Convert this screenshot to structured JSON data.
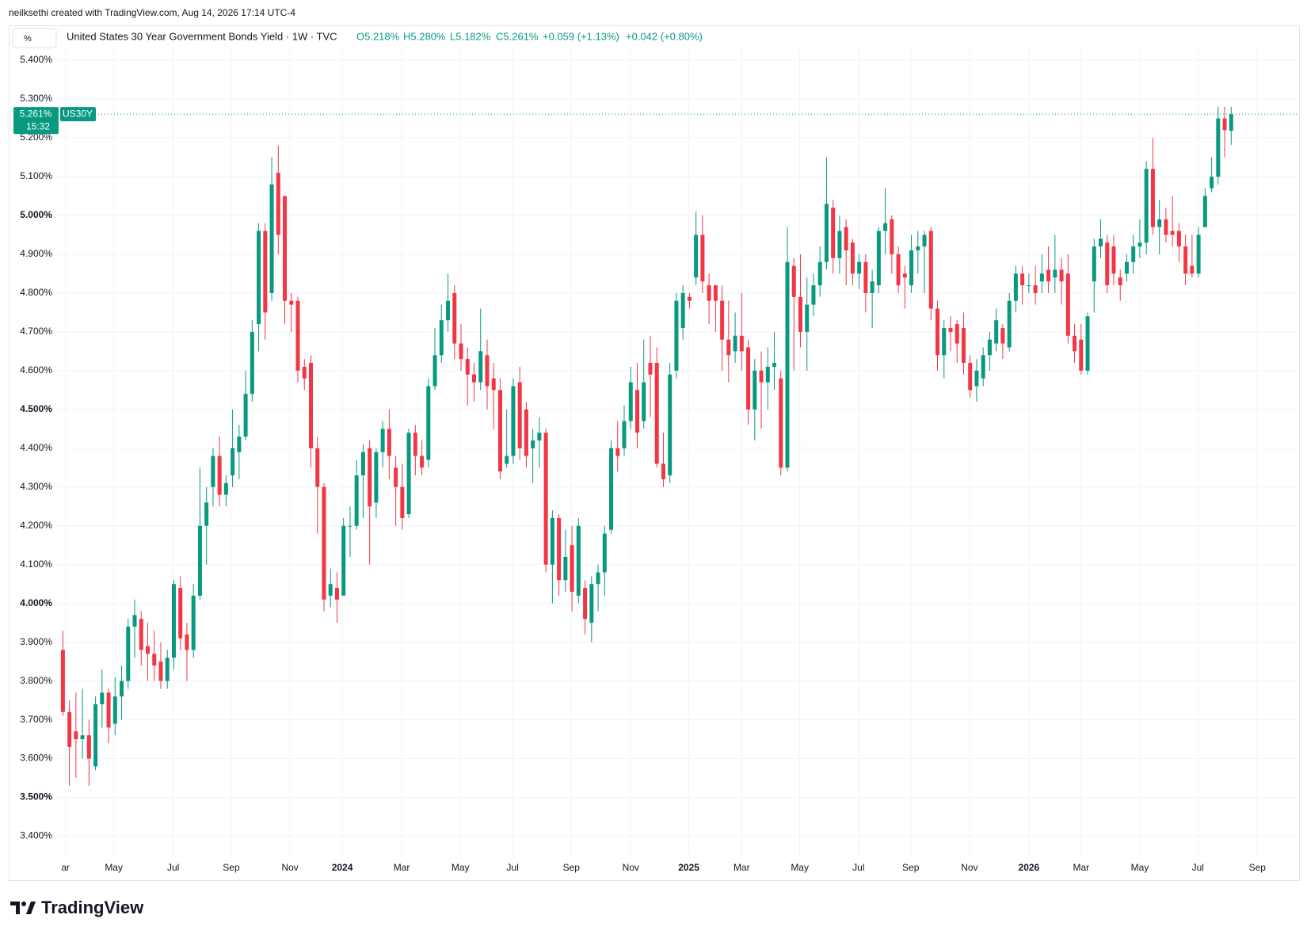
{
  "chart_data": {
    "type": "candlestick",
    "watermark": "neilksethi created with TradingView.com, Aug 14, 2026 17:14 UTC-4",
    "unit": "%",
    "title": "United States 30 Year Government Bonds Yield · 1W · TVC",
    "ohlc_labels": [
      "O5.218%",
      "H5.280%",
      "L5.182%",
      "C5.261%"
    ],
    "change_labels": [
      "+0.059 (+1.13%)",
      "+0.042 (+0.80%)"
    ],
    "symbol": "US30Y",
    "last_label": "5.261%",
    "countdown": "15:32",
    "brand": "TradingView",
    "up_color": "#089981",
    "down_color": "#f23645",
    "grid": true,
    "ylim": [
      3.35,
      5.49
    ],
    "yticks": [
      {
        "value": 3.4,
        "label": "3.400%"
      },
      {
        "value": 3.5,
        "label": "3.500%"
      },
      {
        "value": 3.6,
        "label": "3.600%"
      },
      {
        "value": 3.7,
        "label": "3.700%"
      },
      {
        "value": 3.8,
        "label": "3.800%"
      },
      {
        "value": 3.9,
        "label": "3.900%"
      },
      {
        "value": 4.0,
        "label": "4.000%"
      },
      {
        "value": 4.1,
        "label": "4.100%"
      },
      {
        "value": 4.2,
        "label": "4.200%"
      },
      {
        "value": 4.3,
        "label": "4.300%"
      },
      {
        "value": 4.4,
        "label": "4.400%"
      },
      {
        "value": 4.5,
        "label": "4.500%"
      },
      {
        "value": 4.6,
        "label": "4.600%"
      },
      {
        "value": 4.7,
        "label": "4.700%"
      },
      {
        "value": 4.8,
        "label": "4.800%"
      },
      {
        "value": 4.9,
        "label": "4.900%"
      },
      {
        "value": 5.0,
        "label": "5.000%"
      },
      {
        "value": 5.1,
        "label": "5.100%"
      },
      {
        "value": 5.2,
        "label": "5.200%"
      },
      {
        "value": 5.3,
        "label": "5.300%"
      },
      {
        "value": 5.4,
        "label": "5.400%"
      }
    ],
    "xlim": [
      -8.3,
      189.4
    ],
    "xticks": [
      {
        "value": 0.4,
        "label": "ar"
      },
      {
        "value": 7.8,
        "label": "May"
      },
      {
        "value": 16.9,
        "label": "Jul"
      },
      {
        "value": 25.8,
        "label": "Sep"
      },
      {
        "value": 34.8,
        "label": "Nov"
      },
      {
        "value": 42.8,
        "label": "2024"
      },
      {
        "value": 51.9,
        "label": "Mar"
      },
      {
        "value": 60.9,
        "label": "May"
      },
      {
        "value": 68.9,
        "label": "Jul"
      },
      {
        "value": 77.9,
        "label": "Sep"
      },
      {
        "value": 87,
        "label": "Nov"
      },
      {
        "value": 95.9,
        "label": "2025"
      },
      {
        "value": 104,
        "label": "Mar"
      },
      {
        "value": 112.9,
        "label": "May"
      },
      {
        "value": 121.9,
        "label": "Jul"
      },
      {
        "value": 129.9,
        "label": "Sep"
      },
      {
        "value": 138.9,
        "label": "Nov"
      },
      {
        "value": 148,
        "label": "2026"
      },
      {
        "value": 156,
        "label": "Mar"
      },
      {
        "value": 165,
        "label": "May"
      },
      {
        "value": 173.9,
        "label": "Jul"
      },
      {
        "value": 183,
        "label": "Sep"
      }
    ],
    "open": [
      3.88,
      3.72,
      3.67,
      3.65,
      3.66,
      3.58,
      3.74,
      3.77,
      3.69,
      3.76,
      3.8,
      3.94,
      3.96,
      3.89,
      3.87,
      3.85,
      3.8,
      3.86,
      4.04,
      3.92,
      3.88,
      4.02,
      4.2,
      4.3,
      4.38,
      4.28,
      4.33,
      4.39,
      4.43,
      4.54,
      4.72,
      4.96,
      4.8,
      5.11,
      5.05,
      4.78,
      4.78,
      4.61,
      4.62,
      4.4,
      4.3,
      4.02,
      4.04,
      4.02,
      4.2,
      4.2,
      4.33,
      4.4,
      4.26,
      4.39,
      4.45,
      4.35,
      4.3,
      4.23,
      4.44,
      4.38,
      4.37,
      4.56,
      4.64,
      4.73,
      4.8,
      4.67,
      4.63,
      4.59,
      4.57,
      4.64,
      4.58,
      4.55,
      4.36,
      4.38,
      4.57,
      4.5,
      4.4,
      4.42,
      4.44,
      4.1,
      4.22,
      4.06,
      4.15,
      4.02,
      4.04,
      3.95,
      4.05,
      4.08,
      4.19,
      4.4,
      4.4,
      4.47,
      4.55,
      4.47,
      4.62,
      4.62,
      4.36,
      4.33,
      4.6,
      4.71,
      4.79,
      4.84,
      4.95,
      4.82,
      4.82,
      4.78,
      4.68,
      4.65,
      4.69,
      4.66,
      4.5,
      4.6,
      4.57,
      4.61,
      4.58,
      4.35,
      4.87,
      4.79,
      4.7,
      4.77,
      4.82,
      4.88,
      5.02,
      4.89,
      4.97,
      4.93,
      4.85,
      4.88,
      4.8,
      4.82,
      4.96,
      4.99,
      4.9,
      4.85,
      4.82,
      4.91,
      4.92,
      4.96,
      4.76,
      4.64,
      4.71,
      4.72,
      4.71,
      4.62,
      4.56,
      4.58,
      4.64,
      4.67,
      4.71,
      4.66,
      4.78,
      4.85,
      4.82,
      4.82,
      4.83,
      4.86,
      4.84,
      4.86,
      4.85,
      4.69,
      4.68,
      4.6,
      4.83,
      4.92,
      4.93,
      4.92,
      4.84,
      4.85,
      4.88,
      4.92,
      4.93,
      5.12,
      4.97,
      4.99,
      4.96,
      4.96,
      4.92,
      4.87,
      4.85,
      4.97,
      5.07,
      5.1,
      5.25,
      5.218
    ],
    "high": [
      3.93,
      3.75,
      3.77,
      3.78,
      3.7,
      3.76,
      3.83,
      3.78,
      3.81,
      3.84,
      3.96,
      4.01,
      3.98,
      3.95,
      3.93,
      3.9,
      3.88,
      4.06,
      4.07,
      3.95,
      4.05,
      4.35,
      4.3,
      4.4,
      4.43,
      4.33,
      4.5,
      4.46,
      4.6,
      4.73,
      4.98,
      4.98,
      5.15,
      5.18,
      5.05,
      4.8,
      4.79,
      4.63,
      4.64,
      4.43,
      4.31,
      4.09,
      4.08,
      4.22,
      4.25,
      4.37,
      4.41,
      4.42,
      4.4,
      4.47,
      4.5,
      4.38,
      4.36,
      4.45,
      4.46,
      4.42,
      4.58,
      4.71,
      4.77,
      4.85,
      4.82,
      4.72,
      4.66,
      4.62,
      4.76,
      4.68,
      4.62,
      4.58,
      4.5,
      4.58,
      4.61,
      4.52,
      4.45,
      4.48,
      4.45,
      4.24,
      4.23,
      4.19,
      4.2,
      4.22,
      4.06,
      4.07,
      4.1,
      4.2,
      4.42,
      4.47,
      4.51,
      4.61,
      4.62,
      4.68,
      4.69,
      4.66,
      4.44,
      4.62,
      4.8,
      4.82,
      4.8,
      5.01,
      5.0,
      4.85,
      4.82,
      4.82,
      4.78,
      4.75,
      4.8,
      4.68,
      4.63,
      4.65,
      4.66,
      4.7,
      4.6,
      4.97,
      4.89,
      4.9,
      4.84,
      4.85,
      4.92,
      5.15,
      5.04,
      5.0,
      4.99,
      4.94,
      4.9,
      4.9,
      4.86,
      4.97,
      5.07,
      5.0,
      4.92,
      4.87,
      4.95,
      4.96,
      4.96,
      4.97,
      4.78,
      4.73,
      4.74,
      4.73,
      4.75,
      4.64,
      4.63,
      4.66,
      4.7,
      4.76,
      4.72,
      4.8,
      4.87,
      4.87,
      4.85,
      4.87,
      4.9,
      4.92,
      4.95,
      4.89,
      4.9,
      4.72,
      4.72,
      4.75,
      4.94,
      4.99,
      4.95,
      4.95,
      4.86,
      4.9,
      4.95,
      4.99,
      5.14,
      5.2,
      5.04,
      5.02,
      5.05,
      4.98,
      4.95,
      4.95,
      4.97,
      5.07,
      5.15,
      5.28,
      5.28,
      5.28
    ],
    "low": [
      3.71,
      3.53,
      3.55,
      3.6,
      3.53,
      3.57,
      3.68,
      3.64,
      3.66,
      3.7,
      3.78,
      3.86,
      3.84,
      3.8,
      3.8,
      3.78,
      3.78,
      3.83,
      3.88,
      3.8,
      3.86,
      4.01,
      4.1,
      4.25,
      4.25,
      4.25,
      4.3,
      4.32,
      4.42,
      4.52,
      4.65,
      4.68,
      4.78,
      4.9,
      4.72,
      4.7,
      4.57,
      4.55,
      4.35,
      4.18,
      3.98,
      3.99,
      3.95,
      4.02,
      4.12,
      4.19,
      4.22,
      4.1,
      4.22,
      4.35,
      4.32,
      4.2,
      4.19,
      4.22,
      4.33,
      4.33,
      4.35,
      4.55,
      4.62,
      4.7,
      4.63,
      4.6,
      4.51,
      4.52,
      4.55,
      4.5,
      4.45,
      4.32,
      4.35,
      4.36,
      4.37,
      4.35,
      4.31,
      4.35,
      4.08,
      4.0,
      4.02,
      4.03,
      3.98,
      4.0,
      3.92,
      3.9,
      3.98,
      4.02,
      4.18,
      4.34,
      4.38,
      4.45,
      4.4,
      4.45,
      4.48,
      4.35,
      4.3,
      4.31,
      4.58,
      4.68,
      4.76,
      4.82,
      4.8,
      4.72,
      4.7,
      4.6,
      4.57,
      4.62,
      4.6,
      4.46,
      4.42,
      4.45,
      4.5,
      4.55,
      4.33,
      4.34,
      4.6,
      4.66,
      4.6,
      4.74,
      4.79,
      4.86,
      4.85,
      4.85,
      4.82,
      4.82,
      4.81,
      4.75,
      4.71,
      4.8,
      4.9,
      4.85,
      4.8,
      4.76,
      4.8,
      4.85,
      4.8,
      4.73,
      4.6,
      4.58,
      4.65,
      4.62,
      4.59,
      4.53,
      4.52,
      4.56,
      4.6,
      4.65,
      4.63,
      4.65,
      4.75,
      4.77,
      4.8,
      4.77,
      4.8,
      4.8,
      4.8,
      4.77,
      4.67,
      4.62,
      4.59,
      4.59,
      4.75,
      4.89,
      4.8,
      4.82,
      4.78,
      4.83,
      4.85,
      4.89,
      4.9,
      4.95,
      4.9,
      4.93,
      4.92,
      4.88,
      4.82,
      4.84,
      4.84,
      4.97,
      5.06,
      5.08,
      5.15,
      5.182
    ],
    "close": [
      3.72,
      3.63,
      3.65,
      3.66,
      3.6,
      3.74,
      3.77,
      3.68,
      3.76,
      3.8,
      3.94,
      3.97,
      3.88,
      3.87,
      3.84,
      3.8,
      3.86,
      4.05,
      3.91,
      3.88,
      4.02,
      4.2,
      4.26,
      4.38,
      4.28,
      4.31,
      4.4,
      4.43,
      4.54,
      4.7,
      4.96,
      4.75,
      5.08,
      4.95,
      4.78,
      4.77,
      4.6,
      4.58,
      4.4,
      4.3,
      4.01,
      4.05,
      4.01,
      4.2,
      4.2,
      4.33,
      4.39,
      4.25,
      4.39,
      4.45,
      4.38,
      4.3,
      4.22,
      4.44,
      4.38,
      4.35,
      4.56,
      4.64,
      4.73,
      4.78,
      4.67,
      4.63,
      4.59,
      4.57,
      4.65,
      4.56,
      4.55,
      4.34,
      4.38,
      4.56,
      4.4,
      4.38,
      4.42,
      4.44,
      4.1,
      4.22,
      4.06,
      4.12,
      4.03,
      4.2,
      3.96,
      4.05,
      4.08,
      4.18,
      4.4,
      4.38,
      4.47,
      4.57,
      4.44,
      4.57,
      4.59,
      4.36,
      4.32,
      4.59,
      4.78,
      4.8,
      4.78,
      4.95,
      4.83,
      4.78,
      4.78,
      4.68,
      4.64,
      4.69,
      4.65,
      4.5,
      4.6,
      4.57,
      4.61,
      4.62,
      4.35,
      4.88,
      4.79,
      4.7,
      4.77,
      4.82,
      4.88,
      5.03,
      4.89,
      4.96,
      4.91,
      4.85,
      4.88,
      4.8,
      4.83,
      4.96,
      4.98,
      4.9,
      4.82,
      4.84,
      4.91,
      4.92,
      4.95,
      4.76,
      4.64,
      4.71,
      4.7,
      4.67,
      4.62,
      4.55,
      4.6,
      4.64,
      4.68,
      4.73,
      4.67,
      4.78,
      4.85,
      4.82,
      4.82,
      4.8,
      4.85,
      4.83,
      4.86,
      4.83,
      4.69,
      4.65,
      4.6,
      4.74,
      4.92,
      4.94,
      4.82,
      4.85,
      4.82,
      4.88,
      4.92,
      4.93,
      5.12,
      4.97,
      4.99,
      4.95,
      4.95,
      4.92,
      4.85,
      4.85,
      4.95,
      5.05,
      5.1,
      5.25,
      5.22,
      5.261
    ]
  }
}
